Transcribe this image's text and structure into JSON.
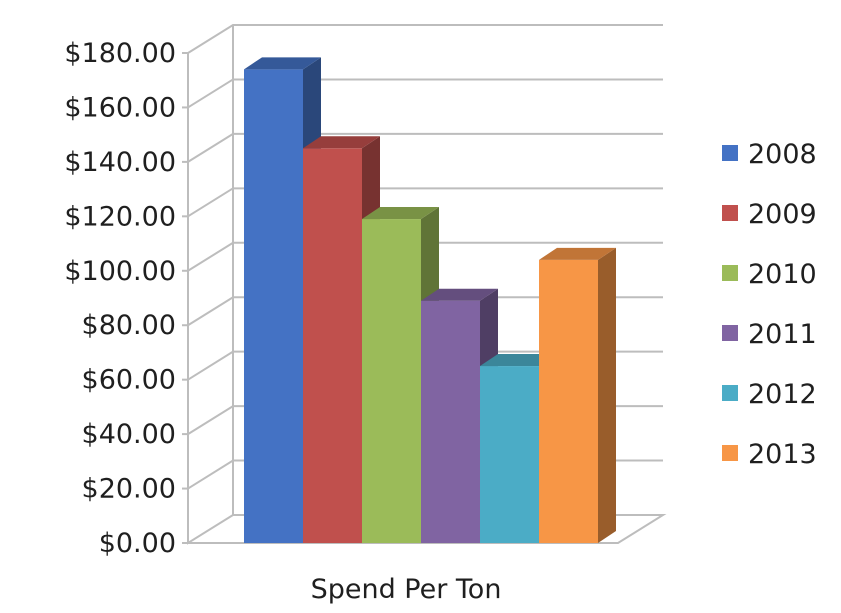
{
  "chart_data": {
    "type": "bar",
    "title": "",
    "xlabel": "Spend Per Ton",
    "ylabel": "",
    "categories": [
      "Spend Per Ton"
    ],
    "ylim": [
      0,
      180
    ],
    "yticks": [
      "$0.00",
      "$20.00",
      "$40.00",
      "$60.00",
      "$80.00",
      "$100.00",
      "$120.00",
      "$140.00",
      "$160.00",
      "$180.00"
    ],
    "series": [
      {
        "name": "2008",
        "values": [
          174
        ],
        "color": "#4472C4"
      },
      {
        "name": "2009",
        "values": [
          145
        ],
        "color": "#C0504D"
      },
      {
        "name": "2010",
        "values": [
          119
        ],
        "color": "#9BBB59"
      },
      {
        "name": "2011",
        "values": [
          89
        ],
        "color": "#8064A2"
      },
      {
        "name": "2012",
        "values": [
          65
        ],
        "color": "#4BACC6"
      },
      {
        "name": "2013",
        "values": [
          104
        ],
        "color": "#F79646"
      }
    ],
    "grid": true,
    "legend": "right",
    "style": "3d-column"
  }
}
